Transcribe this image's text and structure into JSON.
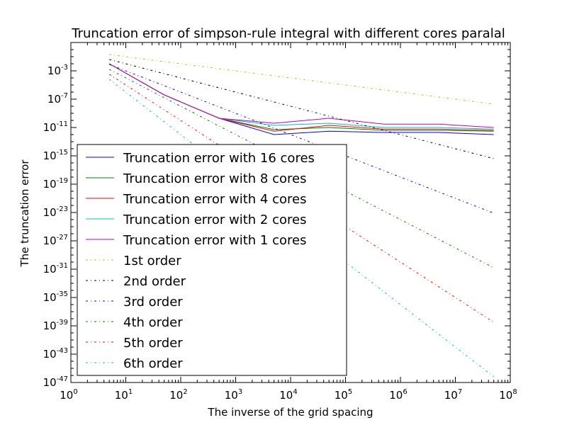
{
  "chart_data": {
    "type": "line",
    "title": "Truncation error of simpson-rule integral with different cores paralal",
    "xlabel": "The inverse of the grid spacing",
    "ylabel": "The truncation error",
    "xscale": "log",
    "yscale": "log",
    "xlim": [
      1,
      100000000
    ],
    "ylim": [
      1e-47,
      10.0
    ],
    "x_ticks": [
      {
        "value": 1,
        "base": "10",
        "exp": "0"
      },
      {
        "value": 10,
        "base": "10",
        "exp": "1"
      },
      {
        "value": 100,
        "base": "10",
        "exp": "2"
      },
      {
        "value": 1000,
        "base": "10",
        "exp": "3"
      },
      {
        "value": 10000,
        "base": "10",
        "exp": "4"
      },
      {
        "value": 100000,
        "base": "10",
        "exp": "5"
      },
      {
        "value": 1000000,
        "base": "10",
        "exp": "6"
      },
      {
        "value": 10000000,
        "base": "10",
        "exp": "7"
      },
      {
        "value": 100000000,
        "base": "10",
        "exp": "8"
      }
    ],
    "y_ticks": [
      {
        "value": 0.001,
        "base": "10",
        "exp": "-3"
      },
      {
        "value": 1e-07,
        "base": "10",
        "exp": "-7"
      },
      {
        "value": 1e-11,
        "base": "10",
        "exp": "-11"
      },
      {
        "value": 1e-15,
        "base": "10",
        "exp": "-15"
      },
      {
        "value": 1e-19,
        "base": "10",
        "exp": "-19"
      },
      {
        "value": 1e-23,
        "base": "10",
        "exp": "-23"
      },
      {
        "value": 1e-27,
        "base": "10",
        "exp": "-27"
      },
      {
        "value": 1e-31,
        "base": "10",
        "exp": "-31"
      },
      {
        "value": 1e-35,
        "base": "10",
        "exp": "-35"
      },
      {
        "value": 1e-39,
        "base": "10",
        "exp": "-39"
      },
      {
        "value": 1e-43,
        "base": "10",
        "exp": "-43"
      },
      {
        "value": 1e-47,
        "base": "10",
        "exp": "-47"
      }
    ],
    "grid": false,
    "legend_position": "lower-left",
    "x": [
      5,
      50,
      500,
      5000,
      50000,
      500000,
      5000000,
      50000000
    ],
    "series": [
      {
        "name": "Truncation error with 16 cores",
        "color": "#0000ff",
        "style": "solid",
        "values": [
          0.01,
          4e-07,
          2e-10,
          1e-12,
          3e-12,
          2e-12,
          2e-12,
          1e-12
        ]
      },
      {
        "name": "Truncation error with 8 cores",
        "color": "#008000",
        "style": "solid",
        "values": [
          0.01,
          4e-07,
          2e-10,
          5e-12,
          1e-11,
          4e-12,
          4e-12,
          3e-12
        ]
      },
      {
        "name": "Truncation error with 4 cores",
        "color": "#ff0000",
        "style": "solid",
        "values": [
          0.01,
          4e-07,
          2e-10,
          3e-12,
          2e-11,
          6e-12,
          6e-12,
          4e-12
        ]
      },
      {
        "name": "Truncation error with 2 cores",
        "color": "#00bfbf",
        "style": "solid",
        "values": [
          0.01,
          4e-07,
          2e-10,
          2e-11,
          4e-11,
          1e-11,
          1e-11,
          6e-12
        ]
      },
      {
        "name": "Truncation error with 1 cores",
        "color": "#bf00bf",
        "style": "solid",
        "values": [
          0.01,
          4e-07,
          2e-10,
          4e-11,
          2e-10,
          3e-11,
          3e-11,
          1e-11
        ]
      },
      {
        "name": "1st order",
        "color": "#bfbf00",
        "style": "dashdot",
        "values": [
          0.2,
          0.02,
          0.002,
          0.0002,
          2e-05,
          2e-06,
          2e-07,
          2e-08
        ]
      },
      {
        "name": "2nd order",
        "color": "#000000",
        "style": "dashdot",
        "values": [
          0.04,
          0.0004,
          4e-06,
          4e-08,
          4e-10,
          4e-12,
          4e-14,
          4e-16
        ]
      },
      {
        "name": "3rd order",
        "color": "#0000ff",
        "style": "dashdot",
        "values": [
          0.008,
          8e-06,
          8e-09,
          8e-12,
          8e-15,
          8e-18,
          8e-21,
          8e-24
        ]
      },
      {
        "name": "4th order",
        "color": "#008000",
        "style": "dashdot",
        "values": [
          0.0016,
          1.6e-07,
          1.6e-11,
          1.6e-15,
          1.6e-19,
          1.6e-23,
          1.6e-27,
          1.6e-31
        ]
      },
      {
        "name": "5th order",
        "color": "#ff0000",
        "style": "dashdot",
        "values": [
          0.00032,
          3.2e-09,
          3.2e-14,
          3.2e-19,
          3.2e-24,
          3.2e-29,
          3.2e-34,
          3.2e-39
        ]
      },
      {
        "name": "6th order",
        "color": "#00bfbf",
        "style": "dashdot",
        "values": [
          6.4e-05,
          6.4e-11,
          6.4e-17,
          6.4e-23,
          6.4e-29,
          6.4e-35,
          6.4e-41,
          6.4e-47
        ]
      }
    ]
  }
}
